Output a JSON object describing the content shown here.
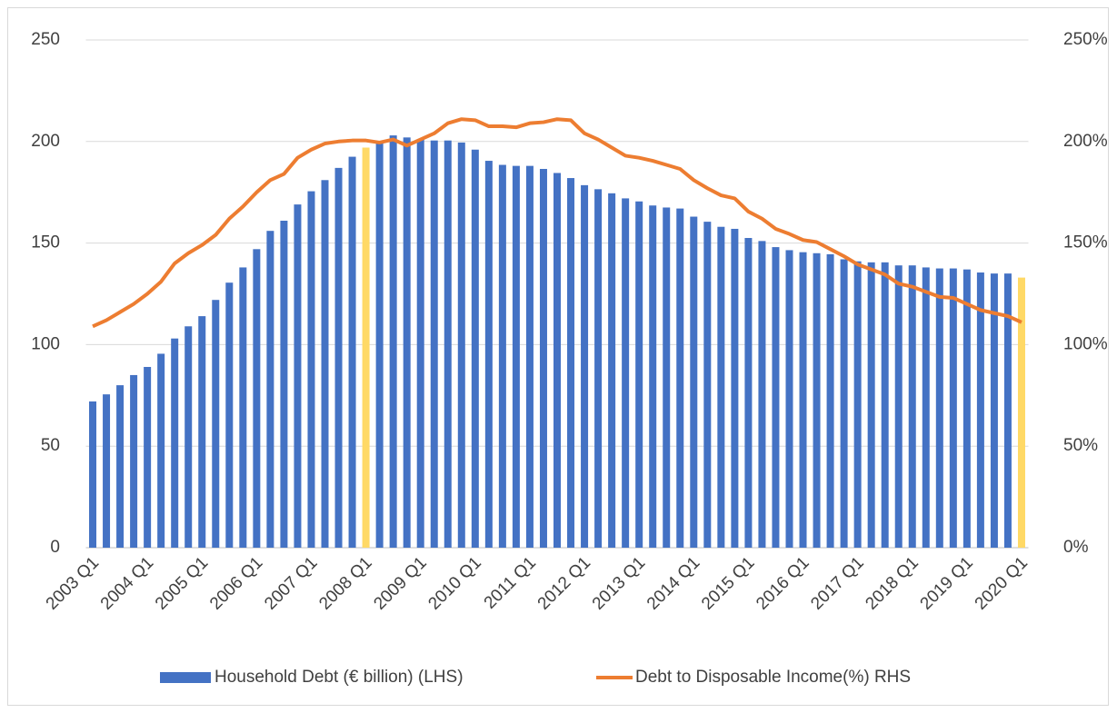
{
  "chart_data": {
    "type": "bar_line",
    "categories": [
      "2003 Q1",
      null,
      null,
      null,
      "2004 Q1",
      null,
      null,
      null,
      "2005 Q1",
      null,
      null,
      null,
      "2006 Q1",
      null,
      null,
      null,
      "2007 Q1",
      null,
      null,
      null,
      "2008 Q1",
      null,
      null,
      null,
      "2009 Q1",
      null,
      null,
      null,
      "2010 Q1",
      null,
      null,
      null,
      "2011 Q1",
      null,
      null,
      null,
      "2012 Q1",
      null,
      null,
      null,
      "2013 Q1",
      null,
      null,
      null,
      "2014 Q1",
      null,
      null,
      null,
      "2015 Q1",
      null,
      null,
      null,
      "2016 Q1",
      null,
      null,
      null,
      "2017 Q1",
      null,
      null,
      null,
      "2018 Q1",
      null,
      null,
      null,
      "2019 Q1",
      null,
      null,
      null,
      "2020 Q1"
    ],
    "series": [
      {
        "name": "Household Debt (€ billion) (LHS)",
        "type": "bar",
        "color": "#4472c4",
        "colors": [
          "#4472c4",
          "#4472c4",
          "#4472c4",
          "#4472c4",
          "#4472c4",
          "#4472c4",
          "#4472c4",
          "#4472c4",
          "#4472c4",
          "#4472c4",
          "#4472c4",
          "#4472c4",
          "#4472c4",
          "#4472c4",
          "#4472c4",
          "#4472c4",
          "#4472c4",
          "#4472c4",
          "#4472c4",
          "#4472c4",
          "#ffd966",
          "#4472c4",
          "#4472c4",
          "#4472c4",
          "#4472c4",
          "#4472c4",
          "#4472c4",
          "#4472c4",
          "#4472c4",
          "#4472c4",
          "#4472c4",
          "#4472c4",
          "#4472c4",
          "#4472c4",
          "#4472c4",
          "#4472c4",
          "#4472c4",
          "#4472c4",
          "#4472c4",
          "#4472c4",
          "#4472c4",
          "#4472c4",
          "#4472c4",
          "#4472c4",
          "#4472c4",
          "#4472c4",
          "#4472c4",
          "#4472c4",
          "#4472c4",
          "#4472c4",
          "#4472c4",
          "#4472c4",
          "#4472c4",
          "#4472c4",
          "#4472c4",
          "#4472c4",
          "#4472c4",
          "#4472c4",
          "#4472c4",
          "#4472c4",
          "#4472c4",
          "#4472c4",
          "#4472c4",
          "#4472c4",
          "#4472c4",
          "#4472c4",
          "#4472c4",
          "#4472c4",
          "#ffd966"
        ],
        "values": [
          72,
          75.5,
          80,
          85,
          89,
          95.5,
          103,
          109,
          114,
          122,
          130.5,
          138,
          147,
          156,
          161,
          169,
          175.5,
          181,
          187,
          192.5,
          197,
          200,
          203,
          202,
          201,
          200.5,
          200.5,
          199.5,
          196,
          190.5,
          188.5,
          188,
          188,
          186.5,
          184.5,
          182,
          178.5,
          176.5,
          174.5,
          172,
          170.5,
          168.5,
          167.5,
          167,
          163,
          160.5,
          158,
          157,
          152.5,
          151,
          148,
          146.5,
          145.5,
          145,
          144.5,
          142,
          141,
          140.5,
          140.5,
          139,
          139,
          138,
          137.5,
          137.5,
          137,
          135.5,
          135,
          135,
          133
        ]
      },
      {
        "name": "Debt to Disposable Income(%) RHS",
        "type": "line",
        "axis": "y2",
        "color": "#ed7d31",
        "values": [
          109,
          112,
          116,
          120,
          125,
          131,
          140,
          145,
          149,
          154,
          162,
          168,
          175,
          181,
          184,
          192,
          196,
          199,
          200,
          200.5,
          200.5,
          199.5,
          201,
          198,
          201,
          204,
          209,
          211,
          210.5,
          207.5,
          207.5,
          207,
          209,
          209.5,
          211,
          210.5,
          204,
          201,
          197,
          193,
          192,
          190.5,
          188.5,
          186.5,
          181,
          177,
          173.5,
          172,
          165.5,
          162,
          157,
          154.5,
          151.5,
          150.5,
          147,
          143.5,
          139.5,
          137,
          134.5,
          130,
          128.5,
          126,
          123.5,
          123,
          120,
          117,
          115.5,
          114,
          111
        ]
      }
    ],
    "ylim": [
      0,
      250
    ],
    "yticks": [
      0,
      50,
      100,
      150,
      200,
      250
    ],
    "y2lim": [
      0,
      250
    ],
    "y2ticks": [
      {
        "value": 0,
        "label": "0%"
      },
      {
        "value": 50,
        "label": "50%"
      },
      {
        "value": 100,
        "label": "100%"
      },
      {
        "value": 150,
        "label": "150%"
      },
      {
        "value": 200,
        "label": "200%"
      },
      {
        "value": 250,
        "label": "250%"
      }
    ],
    "grid": true,
    "legend": "bottom"
  }
}
